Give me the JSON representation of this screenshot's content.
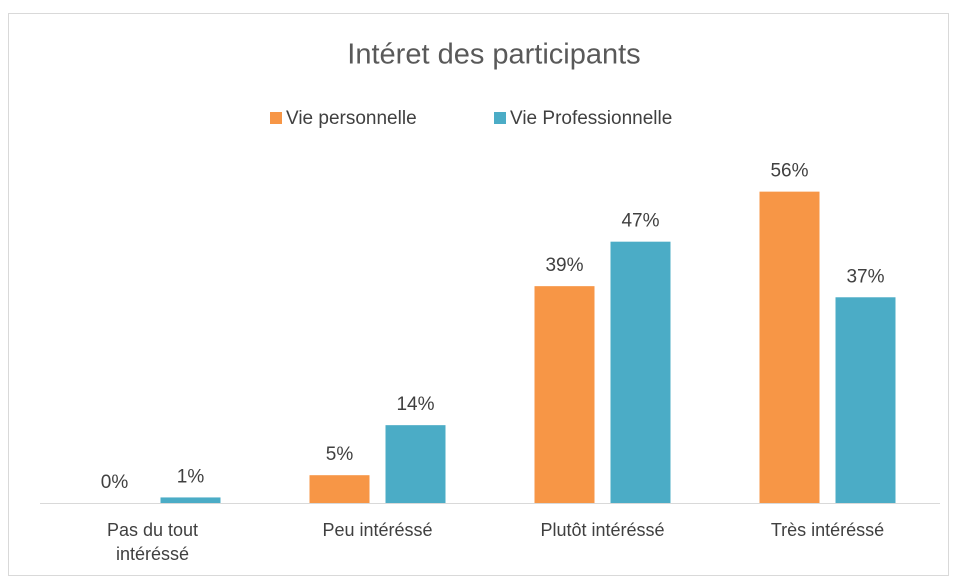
{
  "chart_data": {
    "type": "bar",
    "title": "Intéret des participants",
    "categories": [
      "Pas du tout intéréssé",
      "Peu intéréssé",
      "Plutôt intéréssé",
      "Très intéréssé"
    ],
    "series": [
      {
        "name": "Vie personnelle",
        "color": "#f79646",
        "values": [
          0,
          5,
          39,
          56
        ],
        "value_labels": [
          "0%",
          "5%",
          "39%",
          "56%"
        ]
      },
      {
        "name": "Vie Professionnelle",
        "color": "#4bacc6",
        "values": [
          1,
          14,
          47,
          37
        ],
        "value_labels": [
          "1%",
          "14%",
          "47%",
          "37%"
        ]
      }
    ],
    "legend": "top"
  }
}
